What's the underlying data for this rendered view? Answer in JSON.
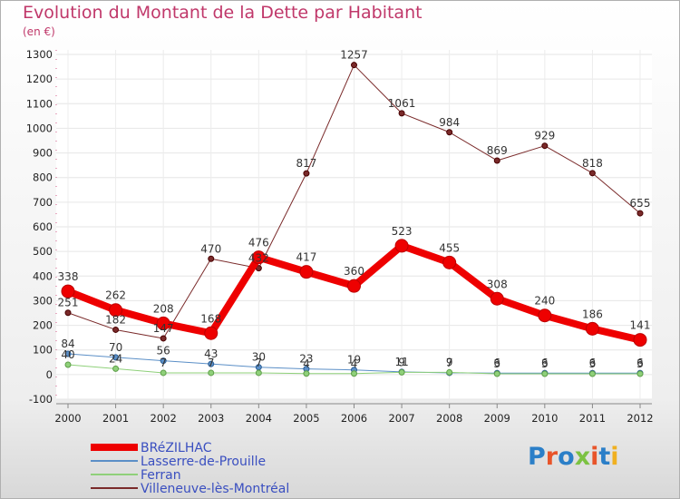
{
  "header": {
    "title": "Evolution du Montant de la Dette par Habitant",
    "subtitle": "(en €)"
  },
  "logo": {
    "text": "Proxiti",
    "colors": [
      "#2b7fc8",
      "#e8542a",
      "#2b7fc8",
      "#7cc242",
      "#e8542a",
      "#2b7fc8",
      "#f0b020"
    ]
  },
  "chart_data": {
    "type": "line",
    "x": [
      "2000",
      "2001",
      "2002",
      "2003",
      "2004",
      "2005",
      "2006",
      "2007",
      "2008",
      "2009",
      "2010",
      "2011",
      "2012"
    ],
    "ylim": [
      -100,
      1300
    ],
    "yticks": [
      -100,
      0,
      100,
      200,
      300,
      400,
      500,
      600,
      700,
      800,
      900,
      1000,
      1100,
      1200,
      1300
    ],
    "grid": true,
    "legend": "bottom-left",
    "series": [
      {
        "name": "Villeneuve-lès-Montréal",
        "color": "#7a2a2a",
        "width": 1,
        "marker": 3,
        "values": [
          251,
          182,
          147,
          470,
          432,
          817,
          1257,
          1061,
          984,
          869,
          929,
          818,
          655
        ]
      },
      {
        "name": "Lasserre-de-Prouille",
        "color": "#5b8fc7",
        "width": 1,
        "marker": 3,
        "values": [
          84,
          70,
          56,
          43,
          30,
          23,
          19,
          11,
          7,
          6,
          6,
          6,
          6
        ]
      },
      {
        "name": "Ferran",
        "color": "#8fd07a",
        "width": 1,
        "marker": 3,
        "values": [
          40,
          24,
          7,
          7,
          7,
          4,
          4,
          9,
          9,
          3,
          3,
          3,
          3
        ]
      },
      {
        "name": "BRéZILHAC",
        "color": "#ee0000",
        "width": 8,
        "marker": 7,
        "values": [
          338,
          262,
          208,
          168,
          476,
          417,
          360,
          523,
          455,
          308,
          240,
          186,
          141
        ]
      }
    ],
    "legend_order": [
      "BRéZILHAC",
      "Lasserre-de-Prouille",
      "Ferran",
      "Villeneuve-lès-Montréal"
    ]
  }
}
